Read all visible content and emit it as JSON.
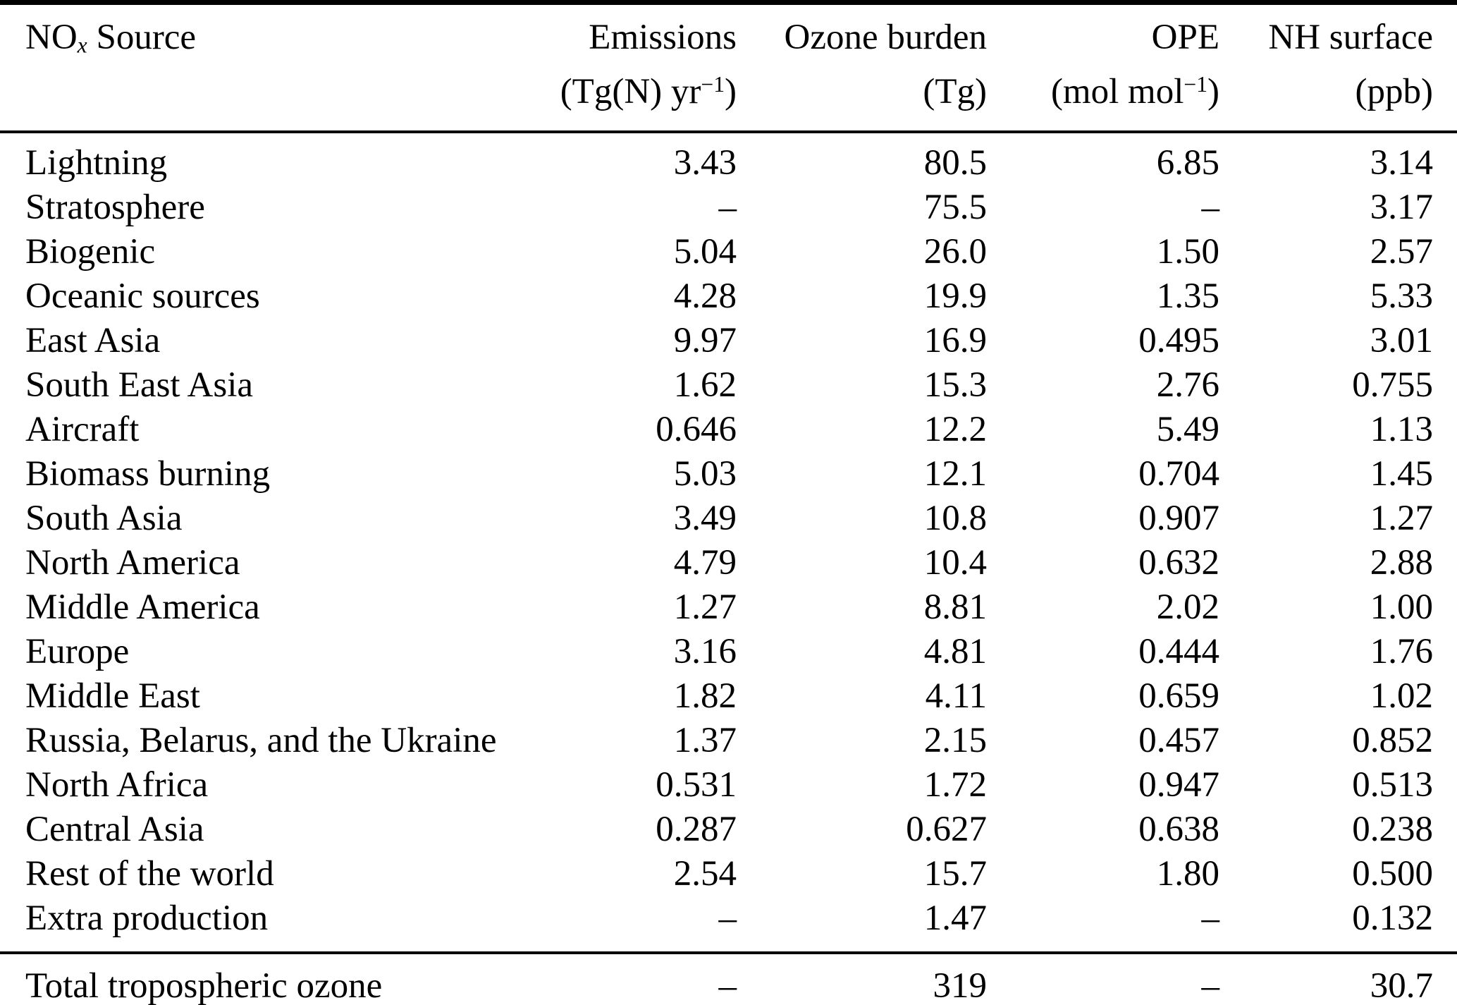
{
  "page": {
    "background_color": "#ffffff",
    "text_color": "#000000"
  },
  "table": {
    "header": {
      "source": {
        "prefix": "NO",
        "sub": "x",
        "suffix": " Source"
      },
      "emissions": {
        "label": "Emissions",
        "unit_prefix": "(Tg(N) yr",
        "unit_sup": "−1",
        "unit_suffix": ")"
      },
      "ozone_burden": {
        "label": "Ozone burden",
        "unit": "(Tg)"
      },
      "ope": {
        "label": "OPE",
        "unit_prefix": "(mol mol",
        "unit_sup": "−1",
        "unit_suffix": ")"
      },
      "nh_surface": {
        "label": "NH surface",
        "unit": "(ppb)"
      }
    },
    "rows": [
      {
        "source": "Lightning",
        "emissions": "3.43",
        "ozone_burden": "80.5",
        "ope": "6.85",
        "nh_surface": "3.14"
      },
      {
        "source": "Stratosphere",
        "emissions": "–",
        "ozone_burden": "75.5",
        "ope": "–",
        "nh_surface": "3.17"
      },
      {
        "source": "Biogenic",
        "emissions": "5.04",
        "ozone_burden": "26.0",
        "ope": "1.50",
        "nh_surface": "2.57"
      },
      {
        "source": "Oceanic sources",
        "emissions": "4.28",
        "ozone_burden": "19.9",
        "ope": "1.35",
        "nh_surface": "5.33"
      },
      {
        "source": "East Asia",
        "emissions": "9.97",
        "ozone_burden": "16.9",
        "ope": "0.495",
        "nh_surface": "3.01"
      },
      {
        "source": "South East Asia",
        "emissions": "1.62",
        "ozone_burden": "15.3",
        "ope": "2.76",
        "nh_surface": "0.755"
      },
      {
        "source": "Aircraft",
        "emissions": "0.646",
        "ozone_burden": "12.2",
        "ope": "5.49",
        "nh_surface": "1.13"
      },
      {
        "source": "Biomass burning",
        "emissions": "5.03",
        "ozone_burden": "12.1",
        "ope": "0.704",
        "nh_surface": "1.45"
      },
      {
        "source": "South Asia",
        "emissions": "3.49",
        "ozone_burden": "10.8",
        "ope": "0.907",
        "nh_surface": "1.27"
      },
      {
        "source": "North America",
        "emissions": "4.79",
        "ozone_burden": "10.4",
        "ope": "0.632",
        "nh_surface": "2.88"
      },
      {
        "source": "Middle America",
        "emissions": "1.27",
        "ozone_burden": "8.81",
        "ope": "2.02",
        "nh_surface": "1.00"
      },
      {
        "source": "Europe",
        "emissions": "3.16",
        "ozone_burden": "4.81",
        "ope": "0.444",
        "nh_surface": "1.76"
      },
      {
        "source": "Middle East",
        "emissions": "1.82",
        "ozone_burden": "4.11",
        "ope": "0.659",
        "nh_surface": "1.02"
      },
      {
        "source": "Russia, Belarus, and the Ukraine",
        "emissions": "1.37",
        "ozone_burden": "2.15",
        "ope": "0.457",
        "nh_surface": "0.852"
      },
      {
        "source": "North Africa",
        "emissions": "0.531",
        "ozone_burden": "1.72",
        "ope": "0.947",
        "nh_surface": "0.513"
      },
      {
        "source": "Central Asia",
        "emissions": "0.287",
        "ozone_burden": "0.627",
        "ope": "0.638",
        "nh_surface": "0.238"
      },
      {
        "source": "Rest of the world",
        "emissions": "2.54",
        "ozone_burden": "15.7",
        "ope": "1.80",
        "nh_surface": "0.500"
      },
      {
        "source": "Extra production",
        "emissions": "–",
        "ozone_burden": "1.47",
        "ope": "–",
        "nh_surface": "0.132"
      }
    ],
    "total": {
      "source": "Total tropospheric ozone",
      "emissions": "–",
      "ozone_burden": "319",
      "ope": "–",
      "nh_surface": "30.7"
    }
  }
}
